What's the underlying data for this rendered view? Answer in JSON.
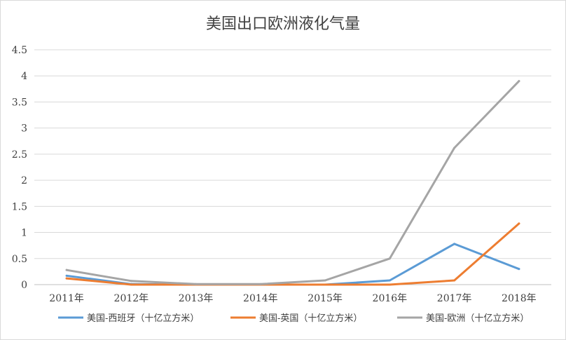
{
  "chart_data": {
    "type": "line",
    "title": "美国出口欧洲液化气量",
    "categories": [
      "2011年",
      "2012年",
      "2013年",
      "2014年",
      "2015年",
      "2016年",
      "2017年",
      "2018年"
    ],
    "ylim": [
      0,
      4.5
    ],
    "yticks": [
      "0",
      "0.5",
      "1",
      "1.5",
      "2",
      "2.5",
      "3",
      "3.5",
      "4",
      "4.5"
    ],
    "ytick_values": [
      0,
      0.5,
      1,
      1.5,
      2,
      2.5,
      3,
      3.5,
      4,
      4.5
    ],
    "grid": true,
    "legend_position": "bottom",
    "series": [
      {
        "name": "美国-西班牙（十亿立方米）",
        "color": "#5b9bd5",
        "values": [
          0.17,
          0.01,
          0,
          0,
          0,
          0.08,
          0.78,
          0.3
        ]
      },
      {
        "name": "美国-英国（十亿立方米）",
        "color": "#ed7d31",
        "values": [
          0.12,
          0,
          0,
          0,
          0,
          0,
          0.08,
          1.17
        ]
      },
      {
        "name": "美国-欧洲（十亿立方米）",
        "color": "#a5a5a5",
        "values": [
          0.28,
          0.07,
          0.01,
          0.01,
          0.08,
          0.5,
          2.62,
          3.9
        ]
      }
    ]
  }
}
